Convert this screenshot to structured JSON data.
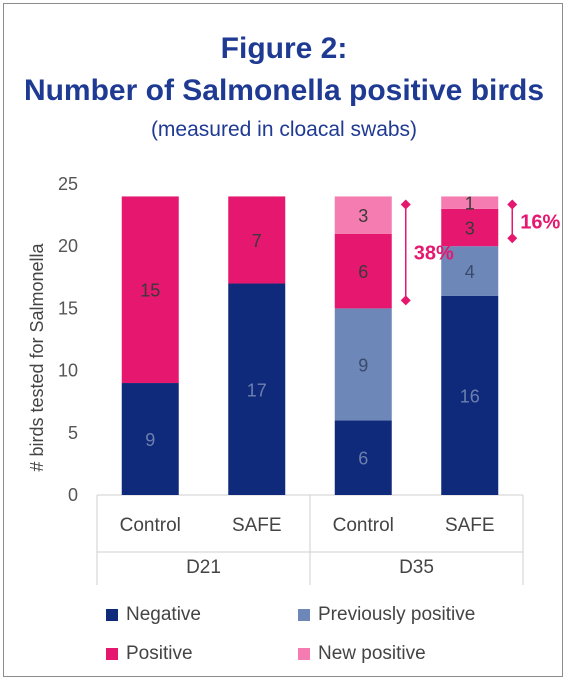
{
  "figure": {
    "title_line1": "Figure 2:",
    "title_line2": "Number of Salmonella positive birds",
    "subtitle": "(measured in cloacal swabs)"
  },
  "colors": {
    "negative": "#0f2a7a",
    "previously_positive": "#6d87b8",
    "positive": "#e5176f",
    "new_positive": "#f47cb0",
    "annotation": "#e5176f"
  },
  "chart_data": {
    "type": "bar",
    "stacked": true,
    "ylabel": "# birds tested for Salmonella",
    "ylim": [
      0,
      25
    ],
    "yticks": [
      0,
      5,
      10,
      15,
      20,
      25
    ],
    "groups": [
      {
        "label": "D21",
        "categories": [
          "Control",
          "SAFE"
        ]
      },
      {
        "label": "D35",
        "categories": [
          "Control",
          "SAFE"
        ]
      }
    ],
    "categories": [
      "Control",
      "SAFE",
      "Control",
      "SAFE"
    ],
    "series": [
      {
        "name": "Negative",
        "values": [
          9,
          17,
          6,
          16
        ]
      },
      {
        "name": "Previously positive",
        "values": [
          0,
          0,
          9,
          4
        ]
      },
      {
        "name": "Positive",
        "values": [
          15,
          7,
          6,
          3
        ]
      },
      {
        "name": "New positive",
        "values": [
          0,
          0,
          3,
          1
        ]
      }
    ],
    "annotations": [
      {
        "category_index": 2,
        "text": "38%"
      },
      {
        "category_index": 3,
        "text": "16%"
      }
    ],
    "legend_position": "bottom"
  },
  "legend": [
    {
      "label": "Negative"
    },
    {
      "label": "Previously positive"
    },
    {
      "label": "Positive"
    },
    {
      "label": "New positive"
    }
  ]
}
